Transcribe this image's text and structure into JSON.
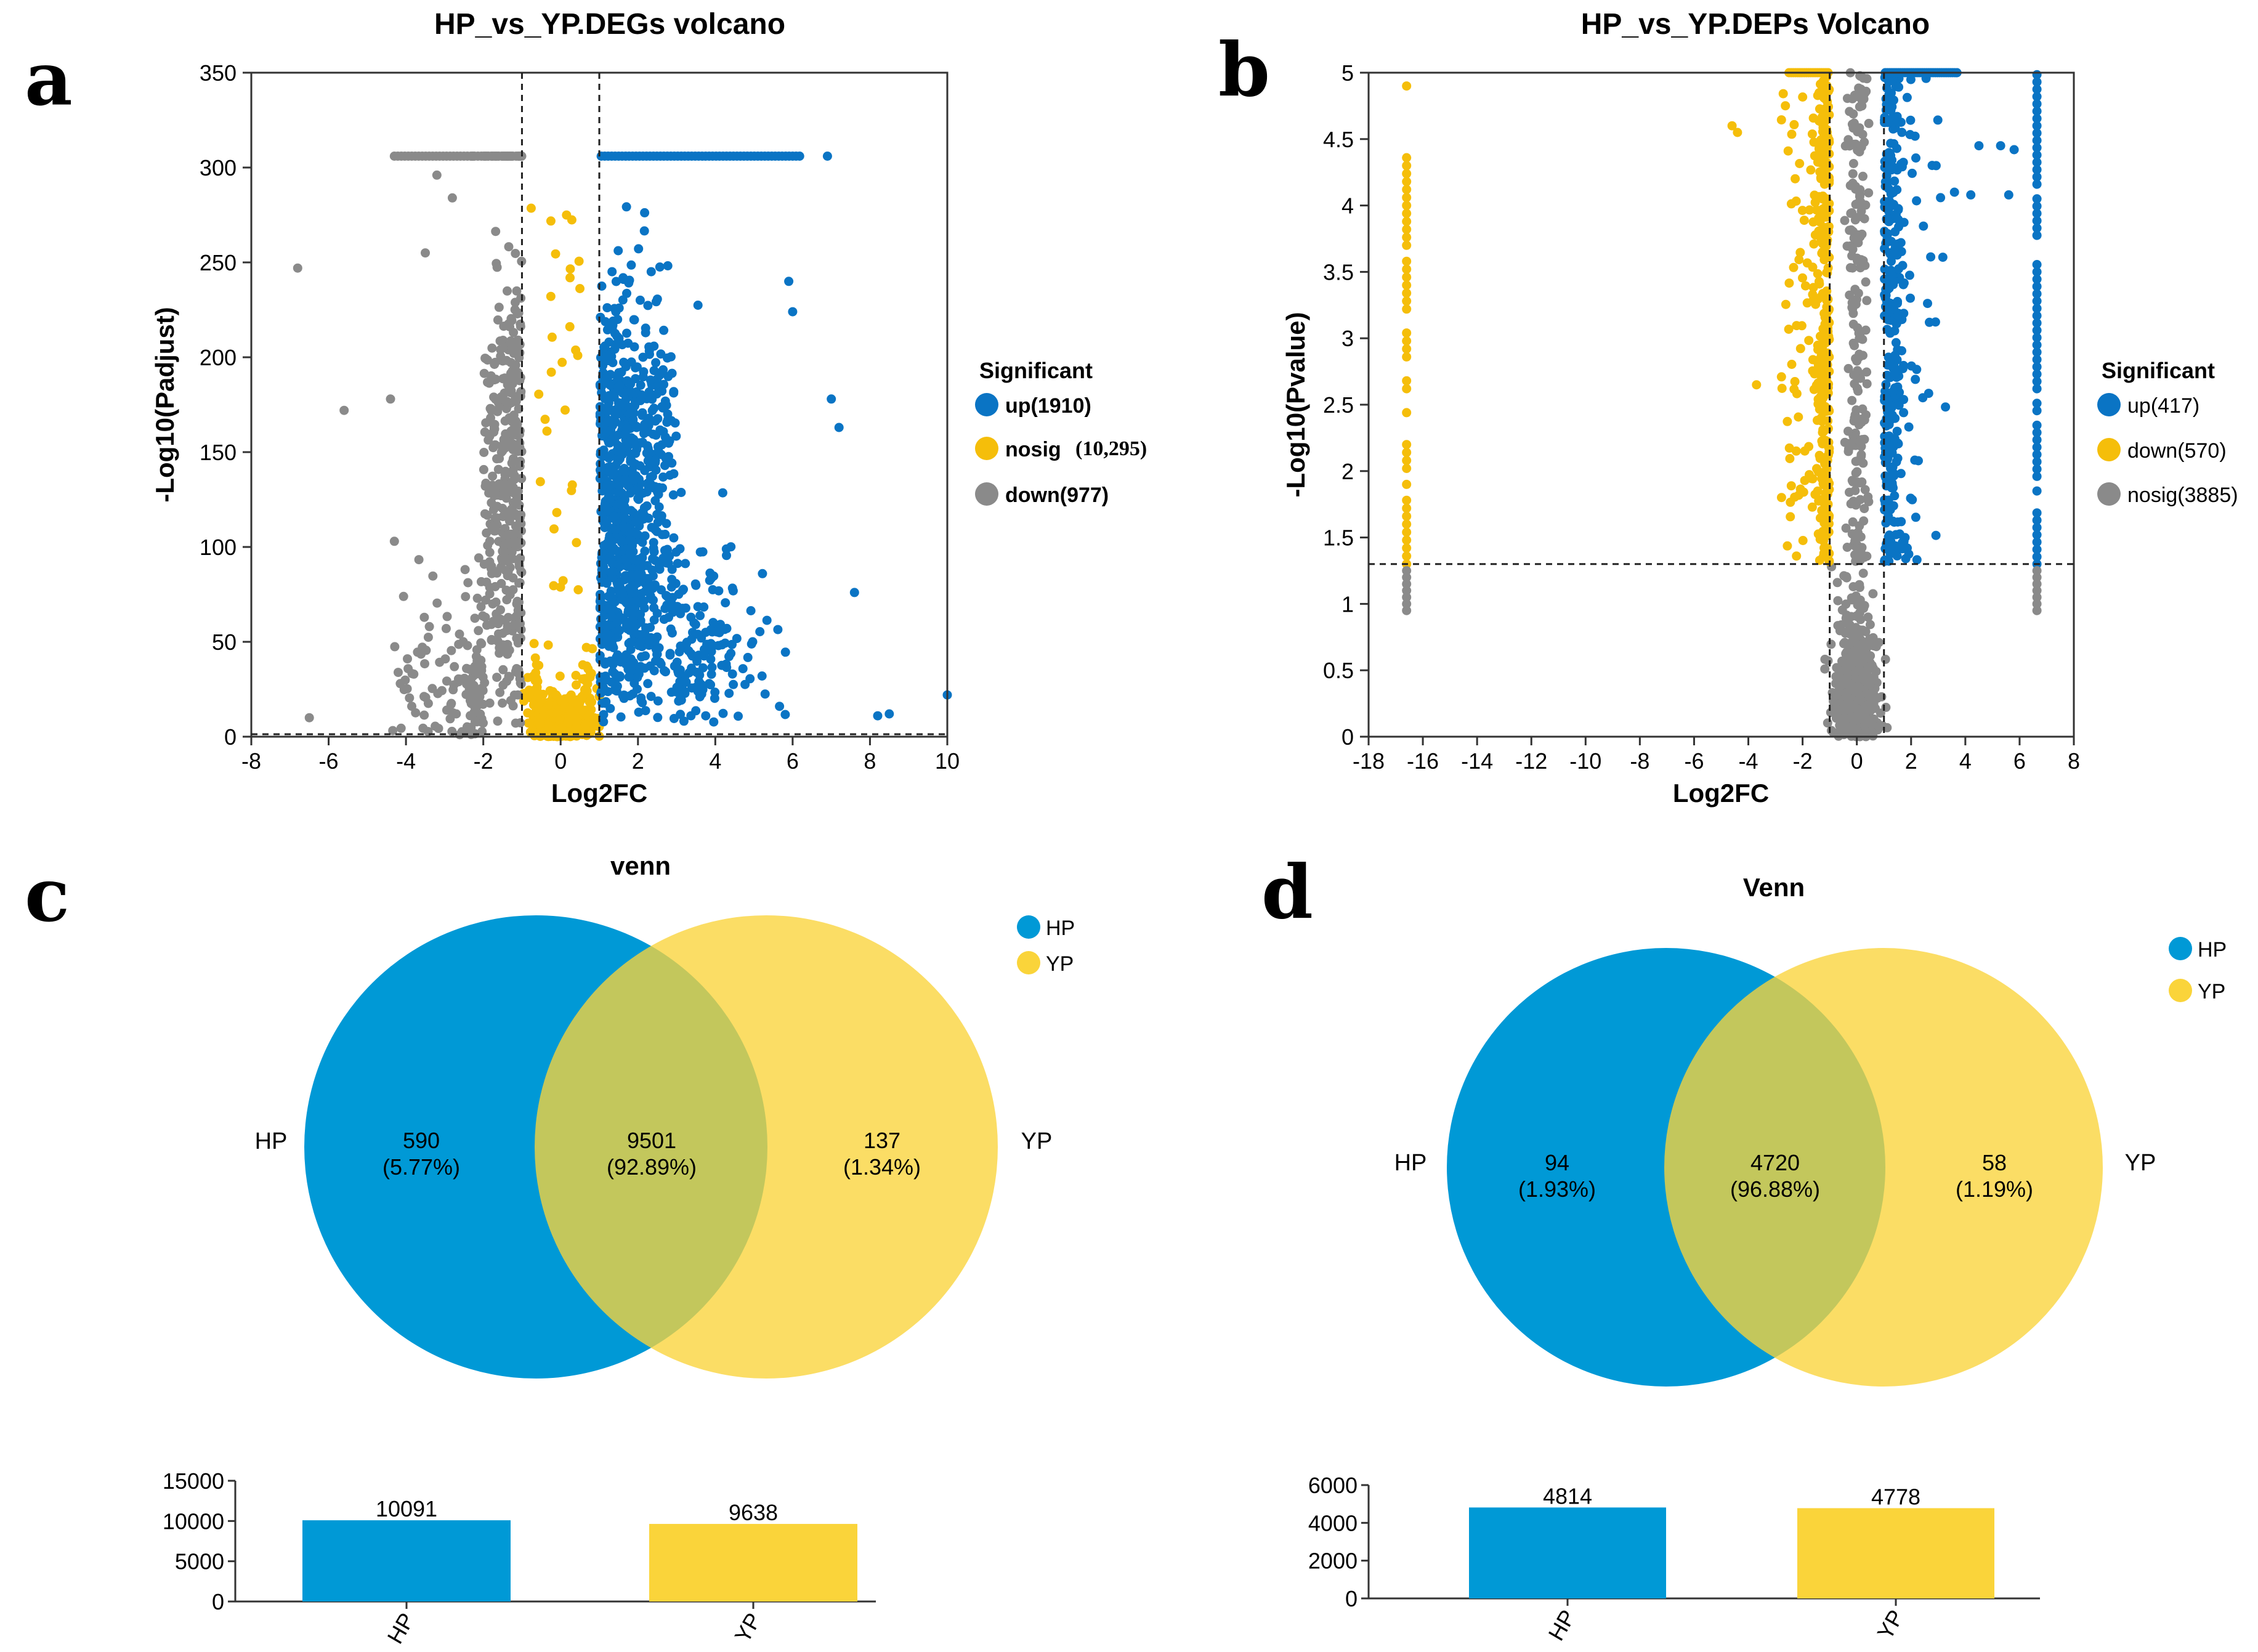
{
  "panel_labels": {
    "a": "a",
    "b": "b",
    "c": "c",
    "d": "d"
  },
  "colors": {
    "up": "#0a74c4",
    "yellow": "#f5be0a",
    "grey": "#8a8a8a",
    "hp": "#0099d6",
    "yp": "#fad43a"
  },
  "chart_data": [
    {
      "type": "scatter",
      "id": "a",
      "title": "HP_vs_YP.DEGs volcano",
      "xlabel": "Log2FC",
      "ylabel": "-Log10(Padjust)",
      "xlim": [
        -8,
        10
      ],
      "ylim": [
        0,
        350
      ],
      "xticks": [
        "-8",
        "-6",
        "-4",
        "-2",
        "0",
        "2",
        "4",
        "6",
        "8",
        "10"
      ],
      "yticks": [
        "0",
        "50",
        "100",
        "150",
        "200",
        "250",
        "300",
        "350"
      ],
      "thresholds": {
        "x": [
          -1,
          1
        ],
        "y": [
          1.3
        ]
      },
      "legend": {
        "title": "Significant",
        "entries": [
          {
            "label": "up(1910)",
            "color": "#0a74c4"
          },
          {
            "label": "nosig",
            "extra": "(10,295)",
            "color": "#f5be0a"
          },
          {
            "label": "down(977)",
            "color": "#8a8a8a"
          }
        ]
      },
      "series": [
        {
          "name": "up",
          "color": "#0a74c4",
          "count": 1910,
          "cap": 306,
          "highlights": [
            [
              10,
              22
            ],
            [
              7,
              178
            ],
            [
              7.2,
              163
            ],
            [
              5.9,
              240
            ],
            [
              6,
              224
            ],
            [
              7.6,
              76
            ],
            [
              8.5,
              12
            ],
            [
              8.2,
              11
            ],
            [
              6.9,
              306
            ]
          ]
        },
        {
          "name": "nosig",
          "color": "#f5be0a",
          "count": 10295
        },
        {
          "name": "down",
          "color": "#8a8a8a",
          "count": 977,
          "cap": 306,
          "highlights": [
            [
              -6.8,
              247
            ],
            [
              -5.6,
              172
            ],
            [
              -4.4,
              178
            ],
            [
              -4.3,
              103
            ],
            [
              -6.5,
              10
            ],
            [
              -3.2,
              296
            ],
            [
              -3.5,
              255
            ],
            [
              -2.8,
              284
            ]
          ]
        }
      ]
    },
    {
      "type": "scatter",
      "id": "b",
      "title": "HP_vs_YP.DEPs Volcano",
      "xlabel": "Log2FC",
      "ylabel": "-Log10(Pvalue)",
      "xlim": [
        -18,
        8
      ],
      "ylim": [
        0,
        5
      ],
      "xticks": [
        "-18",
        "-16",
        "-14",
        "-12",
        "-10",
        "-8",
        "-6",
        "-4",
        "-2",
        "0",
        "2",
        "4",
        "6",
        "8"
      ],
      "yticks": [
        "0",
        "0.5",
        "1",
        "1.5",
        "2",
        "2.5",
        "3",
        "3.5",
        "4",
        "4.5",
        "5"
      ],
      "thresholds": {
        "x": [
          -1,
          1
        ],
        "y": [
          1.3
        ]
      },
      "legend": {
        "title": "Significant",
        "entries": [
          {
            "label": "up(417)",
            "color": "#0a74c4"
          },
          {
            "label": "down(570)",
            "color": "#f5be0a"
          },
          {
            "label": "nosig(3885)",
            "color": "#8a8a8a"
          }
        ]
      },
      "series": [
        {
          "name": "up",
          "color": "#0a74c4",
          "count": 417,
          "column_x": 6.64,
          "highlights": [
            [
              4.2,
              4.08
            ],
            [
              3.6,
              4.1
            ],
            [
              4.5,
              4.45
            ],
            [
              5.3,
              4.45
            ],
            [
              5.8,
              4.42
            ],
            [
              5.6,
              4.08
            ]
          ]
        },
        {
          "name": "down",
          "color": "#f5be0a",
          "count": 570,
          "column_x": -16.6,
          "highlights": [
            [
              -16.6,
              4.9
            ],
            [
              -4.6,
              4.6
            ],
            [
              -4.4,
              4.55
            ],
            [
              -3.7,
              2.65
            ]
          ]
        },
        {
          "name": "nosig",
          "color": "#8a8a8a",
          "count": 3885
        }
      ]
    },
    {
      "type": "venn",
      "id": "c",
      "title": "venn",
      "sets": [
        "HP",
        "YP"
      ],
      "regions": [
        {
          "label": "HP only",
          "count": "590",
          "percent": "(5.77%)"
        },
        {
          "label": "both",
          "count": "9501",
          "percent": "(92.89%)"
        },
        {
          "label": "YP only",
          "count": "137",
          "percent": "(1.34%)"
        }
      ],
      "bar": {
        "categories": [
          "HP",
          "YP"
        ],
        "values": [
          10091,
          9638
        ],
        "ylim": [
          0,
          15000
        ],
        "yticks": [
          "0",
          "5000",
          "10000",
          "15000"
        ]
      }
    },
    {
      "type": "venn",
      "id": "d",
      "title": "Venn",
      "sets": [
        "HP",
        "YP"
      ],
      "regions": [
        {
          "label": "HP only",
          "count": "94",
          "percent": "(1.93%)"
        },
        {
          "label": "both",
          "count": "4720",
          "percent": "(96.88%)"
        },
        {
          "label": "YP only",
          "count": "58",
          "percent": "(1.19%)"
        }
      ],
      "bar": {
        "categories": [
          "HP",
          "YP"
        ],
        "values": [
          4814,
          4778
        ],
        "ylim": [
          0,
          6000
        ],
        "yticks": [
          "0",
          "2000",
          "4000",
          "6000"
        ]
      }
    }
  ]
}
